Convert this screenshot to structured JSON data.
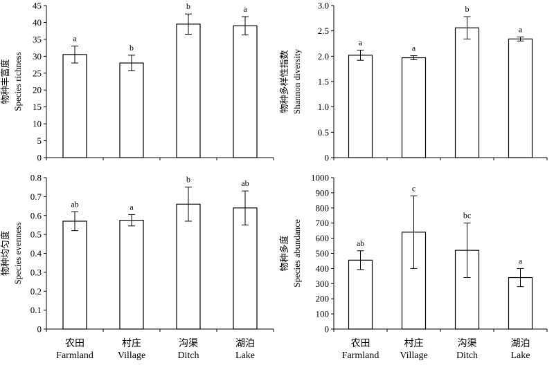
{
  "chart_data": [
    {
      "type": "bar",
      "panel": "top-left",
      "ylabel_cn": "物种丰富度",
      "ylabel_en": "Species richness",
      "ylim": [
        0,
        45
      ],
      "yticks": [
        "0",
        "5",
        "10",
        "15",
        "20",
        "25",
        "30",
        "35",
        "40",
        "45"
      ],
      "categories": [
        {
          "cn": "农田",
          "en": "Farmland"
        },
        {
          "cn": "村庄",
          "en": "Village"
        },
        {
          "cn": "沟渠",
          "en": "Ditch"
        },
        {
          "cn": "湖泊",
          "en": "Lake"
        }
      ],
      "values": [
        30.5,
        28.0,
        39.5,
        39.0
      ],
      "errors": [
        2.5,
        2.3,
        3.0,
        2.7
      ],
      "significance": [
        "a",
        "b",
        "b",
        "a"
      ],
      "show_category_labels": false
    },
    {
      "type": "bar",
      "panel": "top-right",
      "ylabel_cn": "物种多样性指数",
      "ylabel_en": "Shannon diversity",
      "ylim": [
        0,
        3.0
      ],
      "yticks": [
        "0",
        "0.5",
        "1.0",
        "1.5",
        "2.0",
        "2.5",
        "3.0"
      ],
      "categories": [
        {
          "cn": "农田",
          "en": "Farmland"
        },
        {
          "cn": "村庄",
          "en": "Village"
        },
        {
          "cn": "沟渠",
          "en": "Ditch"
        },
        {
          "cn": "湖泊",
          "en": "Lake"
        }
      ],
      "values": [
        2.02,
        1.97,
        2.56,
        2.34
      ],
      "errors": [
        0.1,
        0.04,
        0.22,
        0.04
      ],
      "significance": [
        "a",
        "a",
        "b",
        "a"
      ],
      "show_category_labels": false
    },
    {
      "type": "bar",
      "panel": "bottom-left",
      "ylabel_cn": "物种均匀度",
      "ylabel_en": "Species evenness",
      "ylim": [
        0,
        0.8
      ],
      "yticks": [
        "0",
        "0.1",
        "0.2",
        "0.3",
        "0.4",
        "0.5",
        "0.6",
        "0.7",
        "0.8"
      ],
      "categories": [
        {
          "cn": "农田",
          "en": "Farmland"
        },
        {
          "cn": "村庄",
          "en": "Village"
        },
        {
          "cn": "沟渠",
          "en": "Ditch"
        },
        {
          "cn": "湖泊",
          "en": "Lake"
        }
      ],
      "values": [
        0.57,
        0.575,
        0.66,
        0.64
      ],
      "errors": [
        0.05,
        0.03,
        0.09,
        0.09
      ],
      "significance": [
        "ab",
        "a",
        "b",
        "ab"
      ],
      "show_category_labels": true
    },
    {
      "type": "bar",
      "panel": "bottom-right",
      "ylabel_cn": "物种多度",
      "ylabel_en": "Species abundance",
      "ylim": [
        0,
        1000
      ],
      "yticks": [
        "0",
        "100",
        "200",
        "300",
        "400",
        "500",
        "600",
        "700",
        "800",
        "900",
        "1000"
      ],
      "categories": [
        {
          "cn": "农田",
          "en": "Farmland"
        },
        {
          "cn": "村庄",
          "en": "Village"
        },
        {
          "cn": "沟渠",
          "en": "Ditch"
        },
        {
          "cn": "湖泊",
          "en": "Lake"
        }
      ],
      "values": [
        455,
        640,
        520,
        340
      ],
      "errors": [
        62,
        240,
        180,
        60
      ],
      "significance": [
        "ab",
        "c",
        "bc",
        "a"
      ],
      "show_category_labels": true
    }
  ]
}
